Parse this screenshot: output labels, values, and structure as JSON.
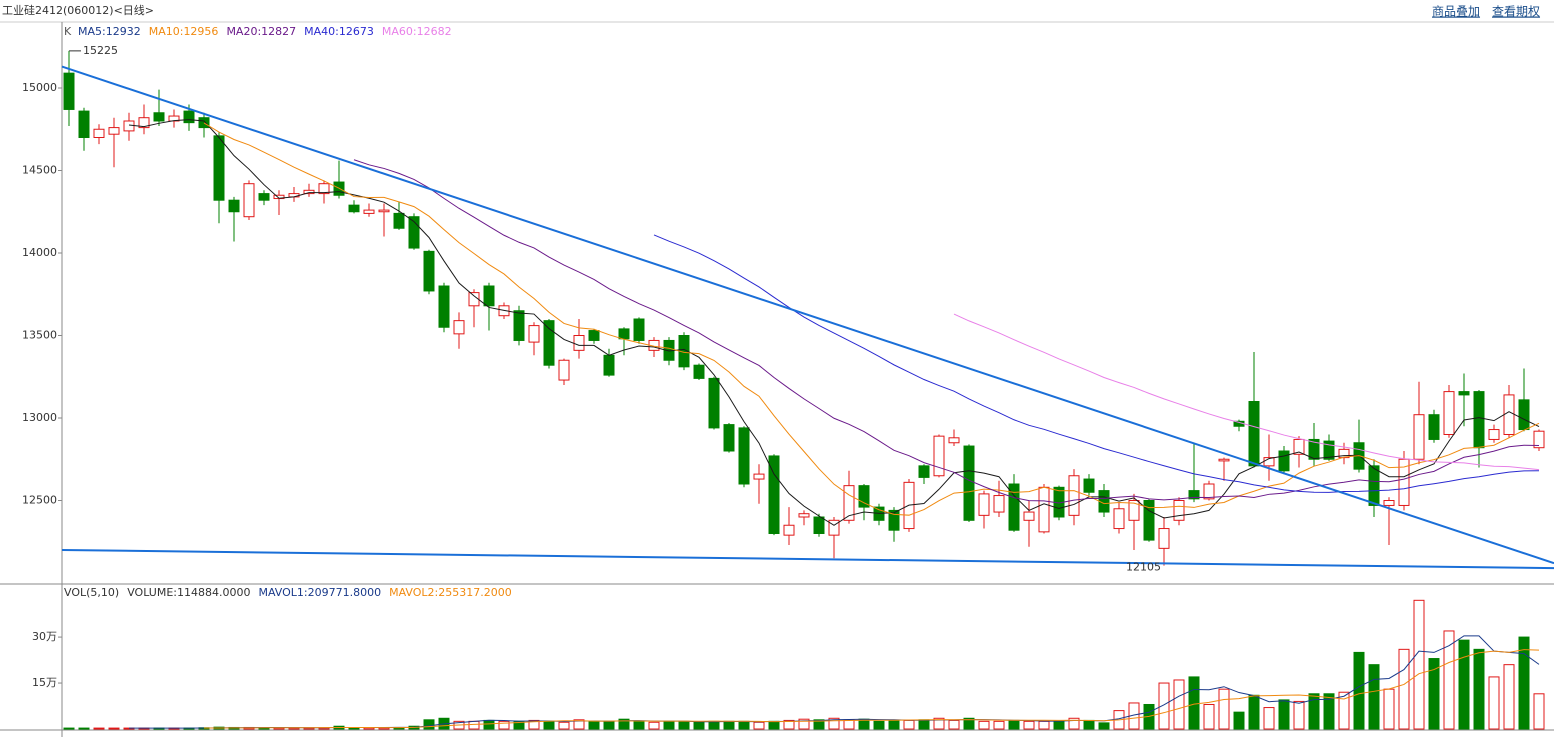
{
  "header": {
    "title": "工业硅2412(060012)<日线>",
    "links": [
      "商品叠加",
      "查看期权"
    ]
  },
  "chart_data": {
    "type": "candlestick",
    "legend": {
      "k": "K",
      "ma": [
        {
          "label": "MA5:12932",
          "period": 5,
          "color": "#1a1a1a",
          "text_color": "#1a3a8a"
        },
        {
          "label": "MA10:12956",
          "period": 10,
          "color": "#f08a10",
          "text_color": "#f08a10"
        },
        {
          "label": "MA20:12827",
          "period": 20,
          "color": "#6a1a8a",
          "text_color": "#6a1a8a"
        },
        {
          "label": "MA40:12673",
          "period": 40,
          "color": "#2a2ad0",
          "text_color": "#2a2ad0"
        },
        {
          "label": "MA60:12682",
          "period": 60,
          "color": "#e880e8",
          "text_color": "#e880e8"
        }
      ]
    },
    "ylim": [
      12000,
      15400
    ],
    "yticks": [
      12500,
      13000,
      13500,
      14000,
      14500,
      15000
    ],
    "up_color": "#e01818",
    "down_color": "#008000",
    "open": [
      15090,
      14860,
      14700,
      14720,
      14740,
      14760,
      14850,
      14800,
      14860,
      14820,
      14710,
      14320,
      14220,
      14360,
      14330,
      14340,
      14360,
      14360,
      14430,
      14290,
      14240,
      14250,
      14240,
      14220,
      14010,
      13800,
      13510,
      13680,
      13800,
      13620,
      13650,
      13460,
      13590,
      13230,
      13410,
      13530,
      13380,
      13540,
      13600,
      13410,
      13470,
      13500,
      13320,
      13240,
      12960,
      12940,
      12630,
      12770,
      12290,
      12400,
      12400,
      12290,
      12380,
      12590,
      12460,
      12440,
      12330,
      12710,
      12650,
      12850,
      12830,
      12410,
      12430,
      12600,
      12380,
      12310,
      12580,
      12410,
      12630,
      12560,
      12330,
      12380,
      12500,
      12210,
      12380,
      12560,
      12510,
      12740,
      12980,
      13100,
      12710,
      12800,
      12780,
      12870,
      12860,
      12760,
      12850,
      12710,
      12470,
      12470,
      12750,
      13020,
      12900,
      13160,
      13160,
      12870,
      12900,
      13110,
      12820
    ],
    "high": [
      15225,
      14880,
      14780,
      14820,
      14850,
      14900,
      14990,
      14870,
      14900,
      14850,
      14730,
      14340,
      14440,
      14380,
      14380,
      14400,
      14420,
      14440,
      14560,
      14320,
      14300,
      14300,
      14310,
      14240,
      14020,
      13820,
      13640,
      13780,
      13820,
      13700,
      13680,
      13580,
      13600,
      13360,
      13600,
      13540,
      13420,
      13550,
      13610,
      13490,
      13490,
      13520,
      13330,
      13250,
      12970,
      12950,
      12720,
      12780,
      12460,
      12440,
      12420,
      12400,
      12680,
      12600,
      12480,
      12460,
      12630,
      12720,
      12900,
      12930,
      12840,
      12560,
      12620,
      12660,
      12500,
      12600,
      12590,
      12690,
      12660,
      12600,
      12490,
      12540,
      12510,
      12400,
      12520,
      12850,
      12620,
      12760,
      12990,
      13400,
      12900,
      12830,
      12890,
      12970,
      12900,
      12850,
      12990,
      12750,
      12520,
      12800,
      13220,
      13050,
      13200,
      13270,
      13170,
      12960,
      13200,
      13300,
      12930
    ],
    "low": [
      14770,
      14620,
      14660,
      14520,
      14680,
      14720,
      14770,
      14760,
      14740,
      14700,
      14180,
      14070,
      14200,
      14290,
      14230,
      14310,
      14340,
      14300,
      14330,
      14240,
      14220,
      14100,
      14140,
      14020,
      13750,
      13520,
      13420,
      13550,
      13530,
      13600,
      13440,
      13380,
      13300,
      13200,
      13360,
      13450,
      13250,
      13380,
      13450,
      13370,
      13320,
      13290,
      13230,
      12930,
      12790,
      12580,
      12480,
      12290,
      12230,
      12350,
      12280,
      12150,
      12360,
      12380,
      12350,
      12250,
      12310,
      12600,
      12640,
      12830,
      12370,
      12330,
      12400,
      12310,
      12220,
      12300,
      12380,
      12350,
      12530,
      12400,
      12300,
      12200,
      12250,
      12105,
      12350,
      12490,
      12500,
      12620,
      12920,
      12700,
      12620,
      12660,
      12700,
      12710,
      12740,
      12720,
      12670,
      12400,
      12230,
      12440,
      12720,
      12850,
      12880,
      12950,
      12700,
      12850,
      12880,
      12920,
      12800
    ],
    "close": [
      14870,
      14700,
      14750,
      14760,
      14800,
      14820,
      14800,
      14830,
      14790,
      14760,
      14320,
      14250,
      14420,
      14320,
      14350,
      14360,
      14380,
      14420,
      14350,
      14250,
      14260,
      14260,
      14150,
      14030,
      13770,
      13550,
      13590,
      13760,
      13680,
      13680,
      13470,
      13560,
      13320,
      13350,
      13500,
      13470,
      13260,
      13480,
      13470,
      13470,
      13350,
      13310,
      13240,
      12940,
      12800,
      12600,
      12660,
      12300,
      12350,
      12420,
      12300,
      12380,
      12590,
      12460,
      12380,
      12320,
      12610,
      12640,
      12890,
      12880,
      12380,
      12540,
      12530,
      12320,
      12430,
      12580,
      12400,
      12650,
      12550,
      12430,
      12450,
      12500,
      12260,
      12330,
      12500,
      12510,
      12600,
      12750,
      12950,
      12710,
      12760,
      12680,
      12870,
      12750,
      12750,
      12810,
      12690,
      12470,
      12500,
      12750,
      13020,
      12870,
      13160,
      13140,
      12820,
      12930,
      13140,
      12930,
      12920
    ],
    "high_label": 15225,
    "low_label": 12105,
    "trendlines": [
      {
        "start": 15130,
        "end": 12120,
        "color": "#1a6fd8"
      },
      {
        "start": 12200,
        "end": 12090,
        "color": "#1a6fd8"
      }
    ],
    "volume": {
      "legend": [
        "VOL(5,10)",
        "VOLUME:114884.0000",
        "MAVOL1:209771.8000",
        "MAVOL2:255317.2000"
      ],
      "legend_colors": [
        "#333",
        "#333",
        "#1a3a8a",
        "#f08a10"
      ],
      "ma_periods": [
        5,
        10
      ],
      "ylim": [
        0,
        470000
      ],
      "yticks": [
        {
          "value": 150000,
          "label": "15万"
        },
        {
          "value": 300000,
          "label": "30万"
        }
      ],
      "values": [
        3000,
        3000,
        3000,
        3000,
        3000,
        3000,
        3000,
        3000,
        3000,
        4000,
        6000,
        5000,
        5000,
        4000,
        4000,
        4000,
        4000,
        4000,
        9000,
        4000,
        4000,
        4000,
        5000,
        9000,
        30000,
        35000,
        25000,
        25000,
        28000,
        25000,
        25000,
        28000,
        25000,
        22000,
        30000,
        25000,
        25000,
        32000,
        25000,
        22000,
        25000,
        25000,
        22000,
        25000,
        25000,
        25000,
        22000,
        25000,
        28000,
        32000,
        30000,
        35000,
        30000,
        32000,
        25000,
        28000,
        28000,
        30000,
        35000,
        28000,
        35000,
        25000,
        25000,
        28000,
        25000,
        25000,
        25000,
        35000,
        28000,
        20000,
        60000,
        85000,
        80000,
        150000,
        160000,
        170000,
        80000,
        130000,
        55000,
        110000,
        70000,
        95000,
        90000,
        115000,
        115000,
        120000,
        250000,
        210000,
        130000,
        260000,
        420000,
        230000,
        320000,
        290000,
        260000,
        170000,
        210000,
        300000,
        114884
      ]
    }
  }
}
